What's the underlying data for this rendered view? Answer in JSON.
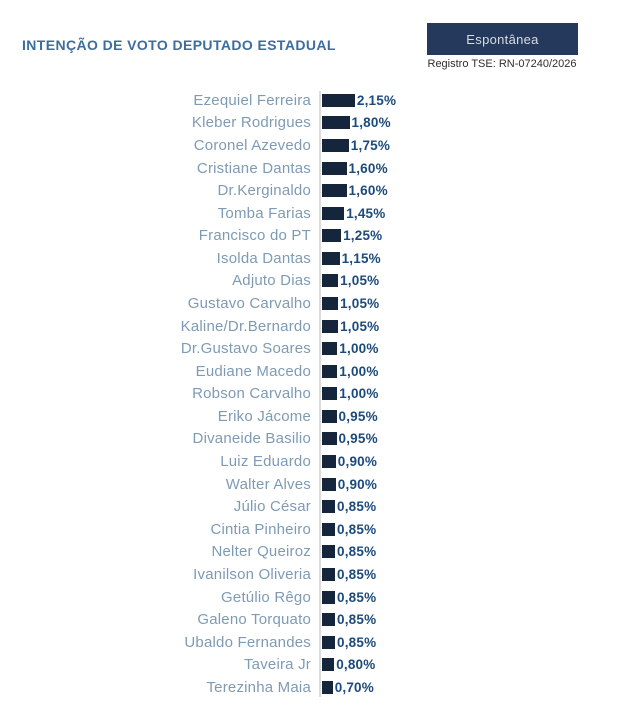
{
  "header": {
    "title": "INTENÇÃO DE VOTO DEPUTADO ESTADUAL",
    "badge_label": "Espontânea",
    "registry_text": "Registro TSE: RN-07240/2026"
  },
  "chart_data": {
    "type": "bar",
    "orientation": "horizontal",
    "title": "INTENÇÃO DE VOTO DEPUTADO ESTADUAL",
    "xlabel": "",
    "ylabel": "",
    "unit": "%",
    "decimal_style": "comma",
    "xlim": [
      0,
      2.5
    ],
    "grid": false,
    "legend": null,
    "categories": [
      "Ezequiel Ferreira",
      "Kleber Rodrigues",
      "Coronel Azevedo",
      "Cristiane Dantas",
      "Dr.Kerginaldo",
      "Tomba Farias",
      "Francisco do PT",
      "Isolda Dantas",
      "Adjuto Dias",
      "Gustavo Carvalho",
      "Kaline/Dr.Bernardo",
      "Dr.Gustavo Soares",
      "Eudiane Macedo",
      "Robson Carvalho",
      "Eriko Jácome",
      "Divaneide Basilio",
      "Luiz Eduardo",
      "Walter Alves",
      "Júlio César",
      "Cintia Pinheiro",
      "Nelter Queiroz",
      "Ivanilson Oliveria",
      "Getúlio Rêgo",
      "Galeno Torquato",
      "Ubaldo Fernandes",
      "Taveira Jr",
      "Terezinha Maia"
    ],
    "values": [
      2.15,
      1.8,
      1.75,
      1.6,
      1.6,
      1.45,
      1.25,
      1.15,
      1.05,
      1.05,
      1.05,
      1.0,
      1.0,
      1.0,
      0.95,
      0.95,
      0.9,
      0.9,
      0.85,
      0.85,
      0.85,
      0.85,
      0.85,
      0.85,
      0.85,
      0.8,
      0.7
    ],
    "value_labels": [
      "2,15%",
      "1,80%",
      "1,75%",
      "1,60%",
      "1,60%",
      "1,45%",
      "1,25%",
      "1,15%",
      "1,05%",
      "1,05%",
      "1,05%",
      "1,00%",
      "1,00%",
      "1,00%",
      "0,95%",
      "0,95%",
      "0,90%",
      "0,90%",
      "0,85%",
      "0,85%",
      "0,85%",
      "0,85%",
      "0,85%",
      "0,85%",
      "0,85%",
      "0,80%",
      "0,70%"
    ],
    "colors": {
      "bar": "#15263c",
      "value_label": "#1c4a7b",
      "category_label": "#7e9bb5",
      "axis_line": "#dcdcdc",
      "title": "#3d6d9e",
      "badge_bg": "#24395c",
      "badge_text": "#d7dce3",
      "registry_text": "#2e2e2e",
      "background": "#ffffff"
    }
  }
}
